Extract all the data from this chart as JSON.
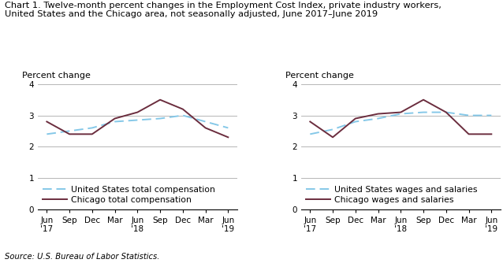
{
  "title_line1": "Chart 1. Twelve-month percent changes in the Employment Cost Index, private industry workers,",
  "title_line2": "United States and the Chicago area, not seasonally adjusted, June 2017–June 2019",
  "source": "Source: U.S. Bureau of Labor Statistics.",
  "ylabel": "Percent change",
  "x_labels": [
    "Jun\n'17",
    "Sep",
    "Dec",
    "Mar",
    "Jun\n'18",
    "Sep",
    "Dec",
    "Mar",
    "Jun\n'19"
  ],
  "ylim": [
    0.0,
    4.0
  ],
  "yticks": [
    0.0,
    1.0,
    2.0,
    3.0,
    4.0
  ],
  "chart1": {
    "us_total": [
      2.4,
      2.5,
      2.6,
      2.8,
      2.85,
      2.9,
      3.0,
      2.8,
      2.6
    ],
    "chicago_total": [
      2.8,
      2.4,
      2.4,
      2.9,
      3.1,
      3.5,
      3.2,
      2.6,
      2.3
    ],
    "us_label": "United States total compensation",
    "chicago_label": "Chicago total compensation"
  },
  "chart2": {
    "us_wages": [
      2.4,
      2.55,
      2.8,
      2.9,
      3.05,
      3.1,
      3.1,
      3.0,
      3.0
    ],
    "chicago_wages": [
      2.8,
      2.3,
      2.9,
      3.05,
      3.1,
      3.5,
      3.1,
      2.4,
      2.4
    ],
    "us_label": "United States wages and salaries",
    "chicago_label": "Chicago wages and salaries"
  },
  "us_color": "#85C8E8",
  "chicago_color": "#6B2D3E",
  "background_color": "#ffffff",
  "grid_color": "#aaaaaa",
  "title_fontsize": 8.2,
  "ylabel_fontsize": 8.0,
  "tick_fontsize": 7.5,
  "legend_fontsize": 7.8,
  "source_fontsize": 7.2
}
